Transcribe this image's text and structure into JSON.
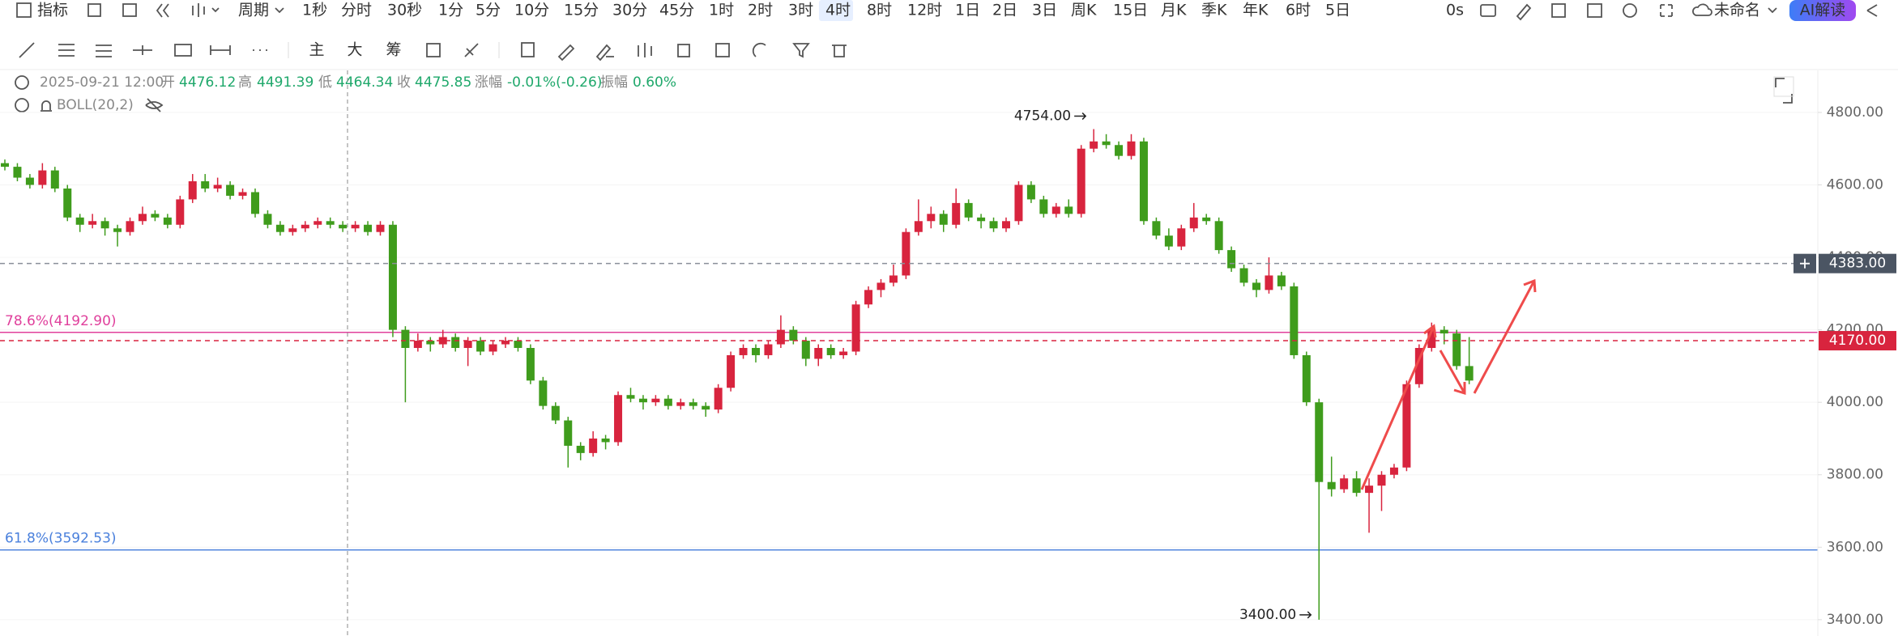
{
  "toolbar": {
    "indicator": "指标",
    "period": "周期",
    "intervals": [
      "1秒",
      "分时",
      "30秒",
      "1分",
      "5分",
      "10分",
      "15分",
      "30分",
      "45分",
      "1时",
      "2时",
      "3时",
      "4时",
      "8时",
      "12时",
      "1日",
      "2日",
      "3日",
      "周K",
      "15日",
      "月K",
      "季K",
      "年K",
      "6时",
      "5日"
    ],
    "active_interval": "4时",
    "timer": "0s",
    "layout_name": "未命名",
    "ai_button": "AI解读",
    "tools": [
      "主",
      "大",
      "筹"
    ]
  },
  "info_bar": {
    "datetime": "2025-09-21 12:00",
    "fields": [
      {
        "label": "开",
        "value": "4476.12"
      },
      {
        "label": "高",
        "value": "4491.39"
      },
      {
        "label": "低",
        "value": "4464.34"
      },
      {
        "label": "收",
        "value": "4475.85"
      },
      {
        "label": "涨幅",
        "value": "-0.01%(-0.26)"
      },
      {
        "label": "振幅",
        "value": "0.60%"
      }
    ],
    "indicator": "BOLL(20,2)"
  },
  "chart_data": {
    "type": "candlestick",
    "up_color": "#d8243e",
    "down_color": "#3f9c1c",
    "ylim": [
      3355,
      4916
    ],
    "yticks": [
      {
        "value": 4800,
        "label": "4800.00"
      },
      {
        "value": 4600,
        "label": "4600.00"
      },
      {
        "value": 4400,
        "label": "4400.00"
      },
      {
        "value": 4200,
        "label": "4200.00"
      },
      {
        "value": 4000,
        "label": "4000.00"
      },
      {
        "value": 3800,
        "label": "3800.00"
      },
      {
        "value": 3600,
        "label": "3600.00"
      },
      {
        "value": 3400,
        "label": "3400.00"
      }
    ],
    "grid": true,
    "candles": [
      [
        4660,
        4670,
        4640,
        4650
      ],
      [
        4650,
        4660,
        4610,
        4620
      ],
      [
        4620,
        4630,
        4590,
        4600
      ],
      [
        4600,
        4660,
        4590,
        4640
      ],
      [
        4640,
        4650,
        4580,
        4590
      ],
      [
        4590,
        4600,
        4500,
        4510
      ],
      [
        4510,
        4520,
        4470,
        4490
      ],
      [
        4490,
        4520,
        4480,
        4500
      ],
      [
        4500,
        4510,
        4460,
        4480
      ],
      [
        4480,
        4490,
        4430,
        4470
      ],
      [
        4470,
        4510,
        4460,
        4500
      ],
      [
        4500,
        4540,
        4490,
        4520
      ],
      [
        4520,
        4530,
        4500,
        4510
      ],
      [
        4510,
        4520,
        4480,
        4490
      ],
      [
        4490,
        4570,
        4480,
        4560
      ],
      [
        4560,
        4630,
        4550,
        4610
      ],
      [
        4610,
        4630,
        4580,
        4590
      ],
      [
        4590,
        4620,
        4580,
        4600
      ],
      [
        4600,
        4610,
        4560,
        4570
      ],
      [
        4570,
        4590,
        4560,
        4580
      ],
      [
        4580,
        4590,
        4510,
        4520
      ],
      [
        4520,
        4530,
        4480,
        4490
      ],
      [
        4490,
        4500,
        4460,
        4470
      ],
      [
        4470,
        4490,
        4460,
        4480
      ],
      [
        4480,
        4500,
        4470,
        4490
      ],
      [
        4490,
        4510,
        4480,
        4500
      ],
      [
        4500,
        4510,
        4480,
        4490
      ],
      [
        4490,
        4500,
        4470,
        4480
      ],
      [
        4480,
        4500,
        4470,
        4490
      ],
      [
        4490,
        4500,
        4460,
        4470
      ],
      [
        4470,
        4500,
        4460,
        4490
      ],
      [
        4490,
        4500,
        4180,
        4200
      ],
      [
        4200,
        4210,
        4000,
        4150
      ],
      [
        4150,
        4190,
        4140,
        4170
      ],
      [
        4170,
        4180,
        4140,
        4160
      ],
      [
        4160,
        4200,
        4150,
        4180
      ],
      [
        4180,
        4190,
        4140,
        4150
      ],
      [
        4150,
        4180,
        4100,
        4170
      ],
      [
        4170,
        4180,
        4130,
        4140
      ],
      [
        4140,
        4170,
        4130,
        4160
      ],
      [
        4160,
        4180,
        4150,
        4170
      ],
      [
        4170,
        4180,
        4140,
        4150
      ],
      [
        4150,
        4160,
        4050,
        4060
      ],
      [
        4060,
        4070,
        3980,
        3990
      ],
      [
        3990,
        4000,
        3940,
        3950
      ],
      [
        3950,
        3960,
        3820,
        3880
      ],
      [
        3880,
        3890,
        3840,
        3860
      ],
      [
        3860,
        3920,
        3850,
        3900
      ],
      [
        3900,
        3910,
        3870,
        3890
      ],
      [
        3890,
        4030,
        3880,
        4020
      ],
      [
        4020,
        4040,
        4000,
        4010
      ],
      [
        4010,
        4020,
        3980,
        4000
      ],
      [
        4000,
        4020,
        3990,
        4010
      ],
      [
        4010,
        4020,
        3980,
        3990
      ],
      [
        3990,
        4010,
        3980,
        4000
      ],
      [
        4000,
        4010,
        3980,
        3990
      ],
      [
        3990,
        4000,
        3960,
        3980
      ],
      [
        3980,
        4050,
        3970,
        4040
      ],
      [
        4040,
        4140,
        4030,
        4130
      ],
      [
        4130,
        4160,
        4120,
        4150
      ],
      [
        4150,
        4160,
        4110,
        4130
      ],
      [
        4130,
        4170,
        4120,
        4160
      ],
      [
        4160,
        4240,
        4150,
        4200
      ],
      [
        4200,
        4210,
        4160,
        4170
      ],
      [
        4170,
        4180,
        4100,
        4120
      ],
      [
        4120,
        4160,
        4100,
        4150
      ],
      [
        4150,
        4160,
        4120,
        4130
      ],
      [
        4130,
        4150,
        4120,
        4140
      ],
      [
        4140,
        4280,
        4130,
        4270
      ],
      [
        4270,
        4320,
        4260,
        4310
      ],
      [
        4310,
        4340,
        4290,
        4330
      ],
      [
        4330,
        4380,
        4320,
        4350
      ],
      [
        4350,
        4480,
        4340,
        4470
      ],
      [
        4470,
        4560,
        4460,
        4500
      ],
      [
        4500,
        4540,
        4480,
        4520
      ],
      [
        4520,
        4530,
        4470,
        4490
      ],
      [
        4490,
        4590,
        4480,
        4550
      ],
      [
        4550,
        4560,
        4500,
        4510
      ],
      [
        4510,
        4520,
        4480,
        4500
      ],
      [
        4500,
        4510,
        4470,
        4480
      ],
      [
        4480,
        4510,
        4470,
        4500
      ],
      [
        4500,
        4610,
        4490,
        4600
      ],
      [
        4600,
        4610,
        4550,
        4560
      ],
      [
        4560,
        4570,
        4510,
        4520
      ],
      [
        4520,
        4550,
        4510,
        4540
      ],
      [
        4540,
        4560,
        4510,
        4520
      ],
      [
        4520,
        4710,
        4510,
        4700
      ],
      [
        4700,
        4754,
        4690,
        4720
      ],
      [
        4720,
        4740,
        4700,
        4710
      ],
      [
        4710,
        4720,
        4670,
        4680
      ],
      [
        4680,
        4740,
        4670,
        4720
      ],
      [
        4720,
        4730,
        4490,
        4500
      ],
      [
        4500,
        4510,
        4450,
        4460
      ],
      [
        4460,
        4480,
        4420,
        4430
      ],
      [
        4430,
        4490,
        4420,
        4480
      ],
      [
        4480,
        4550,
        4470,
        4510
      ],
      [
        4510,
        4520,
        4490,
        4500
      ],
      [
        4500,
        4510,
        4410,
        4420
      ],
      [
        4420,
        4430,
        4360,
        4370
      ],
      [
        4370,
        4380,
        4320,
        4330
      ],
      [
        4330,
        4340,
        4290,
        4310
      ],
      [
        4310,
        4400,
        4300,
        4350
      ],
      [
        4350,
        4360,
        4310,
        4320
      ],
      [
        4320,
        4330,
        4120,
        4130
      ],
      [
        4130,
        4140,
        3990,
        4000
      ],
      [
        4000,
        4010,
        3400,
        3780
      ],
      [
        3780,
        3850,
        3740,
        3760
      ],
      [
        3760,
        3800,
        3750,
        3790
      ],
      [
        3790,
        3810,
        3740,
        3750
      ],
      [
        3750,
        3790,
        3640,
        3770
      ],
      [
        3770,
        3810,
        3700,
        3800
      ],
      [
        3800,
        3830,
        3790,
        3820
      ],
      [
        3820,
        4060,
        3810,
        4050
      ],
      [
        4050,
        4160,
        4040,
        4150
      ],
      [
        4150,
        4220,
        4140,
        4200
      ],
      [
        4200,
        4210,
        4160,
        4190
      ],
      [
        4190,
        4200,
        4090,
        4100
      ],
      [
        4100,
        4180,
        4050,
        4060
      ]
    ],
    "levels": [
      {
        "label": "78.6%(4192.90)",
        "value": 4192.9,
        "color": "#e0409c"
      },
      {
        "label": "61.8%(3592.53)",
        "value": 3592.53,
        "color": "#4a80dc"
      }
    ],
    "price_lines": [
      {
        "label": "4383.00",
        "value": 4383,
        "color": "#8a8f99",
        "box_color": "#4b5563"
      },
      {
        "label": "4170.00",
        "value": 4170,
        "color": "#d8243e",
        "box_color": "#d8243e"
      }
    ],
    "extremes": [
      {
        "label": "4754.00",
        "value": 4754
      },
      {
        "label": "3400.00",
        "value": 3400
      }
    ]
  }
}
